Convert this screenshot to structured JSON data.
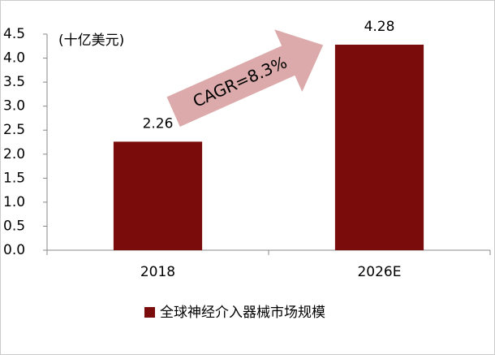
{
  "chart_data": {
    "type": "bar",
    "unit_label": "(十亿美元)",
    "categories": [
      "2018",
      "2026E"
    ],
    "series": [
      {
        "name": "全球神经介入器械市场规模",
        "color": "#7a0c0c",
        "values": [
          2.26,
          4.28
        ]
      }
    ],
    "ylim": [
      0,
      4.5
    ],
    "yticks": [
      {
        "value": 0,
        "label": "0.0"
      },
      0.5,
      {
        "value": 1,
        "label": "1.0"
      },
      1.5,
      {
        "value": 2,
        "label": "2.0"
      },
      2.5,
      {
        "value": 3,
        "label": "3.0"
      },
      3.5,
      {
        "value": 4,
        "label": "4.0"
      },
      4.5
    ],
    "annotation": "CAGR=8.3%",
    "annotation_color": "#dcaaaa"
  }
}
